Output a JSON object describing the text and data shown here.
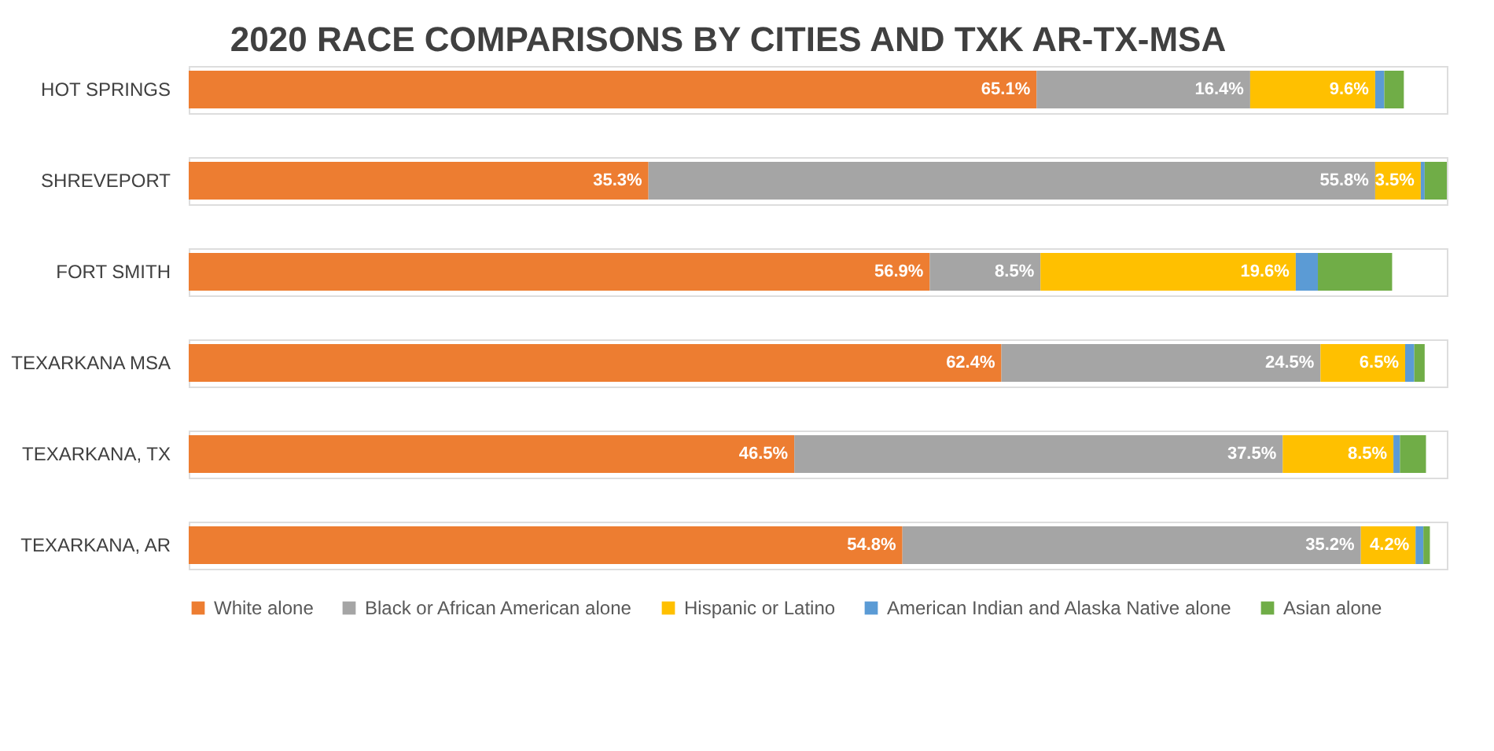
{
  "chart_data": {
    "type": "bar",
    "orientation": "horizontal",
    "stacked": true,
    "title": "2020 RACE COMPARISONS BY CITIES AND TXK AR-TX-MSA",
    "categories": [
      "HOT SPRINGS",
      "SHREVEPORT",
      "FORT SMITH",
      "TEXARKANA MSA",
      "TEXARKANA, TX",
      "TEXARKANA, AR"
    ],
    "series": [
      {
        "name": "White alone",
        "color": "#ed7d31",
        "values": [
          65.1,
          35.3,
          56.9,
          62.4,
          46.5,
          54.8
        ],
        "value_labels": [
          "65.1%",
          "35.3%",
          "56.9%",
          "62.4%",
          "46.5%",
          "54.8%"
        ]
      },
      {
        "name": "Black or African American alone",
        "color": "#a5a5a5",
        "values": [
          16.4,
          55.8,
          8.5,
          24.5,
          37.5,
          35.2
        ],
        "value_labels": [
          "16.4%",
          "55.8%",
          "8.5%",
          "24.5%",
          "37.5%",
          "35.2%"
        ]
      },
      {
        "name": "Hispanic or Latino",
        "color": "#ffc000",
        "values": [
          9.6,
          3.5,
          19.6,
          6.5,
          8.5,
          4.2
        ],
        "value_labels": [
          "9.6%",
          "3.5%",
          "19.6%",
          "6.5%",
          "8.5%",
          "4.2%"
        ]
      },
      {
        "name": "American Indian and Alaska Native alone",
        "color": "#5b9bd5",
        "values": [
          0.7,
          0.3,
          1.7,
          0.7,
          0.5,
          0.6
        ],
        "value_labels": [
          null,
          null,
          null,
          null,
          null,
          null
        ]
      },
      {
        "name": "Asian alone",
        "color": "#70ad47",
        "values": [
          1.5,
          1.7,
          5.7,
          0.8,
          2.0,
          0.5
        ],
        "value_labels": [
          null,
          null,
          null,
          null,
          null,
          null
        ]
      }
    ],
    "legend": "bottom"
  }
}
